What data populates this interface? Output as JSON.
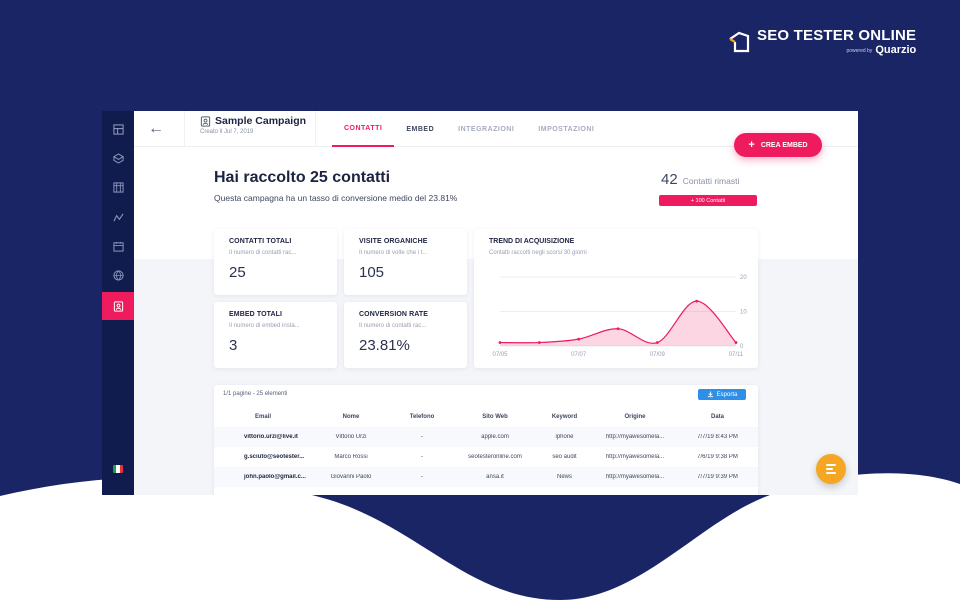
{
  "brand": {
    "name": "SEO TESTER ONLINE",
    "powered_by": "powered by",
    "partner": "Quarzio"
  },
  "campaign": {
    "name": "Sample Campaign",
    "created": "Creato il Jul 7, 2019"
  },
  "tabs": [
    {
      "label": "CONTATTI",
      "active": true
    },
    {
      "label": "EMBED",
      "active": false
    },
    {
      "label": "INTEGRAZIONI",
      "active": false
    },
    {
      "label": "IMPOSTAZIONI",
      "active": false
    }
  ],
  "create_button": "CREA EMBED",
  "hero": {
    "title": "Hai raccolto 25 contatti",
    "subtitle": "Questa campagna ha un tasso di conversione medio del 23.81%",
    "remaining_value": "42",
    "remaining_label": "Contatti rimasti",
    "buy_label": "+ 100 Contatti"
  },
  "stats": [
    {
      "title": "CONTATTI TOTALI",
      "desc": "Il numero di contatti rac...",
      "value": "25"
    },
    {
      "title": "VISITE ORGANICHE",
      "desc": "Il numero di volte che i t...",
      "value": "105"
    },
    {
      "title": "EMBED TOTALI",
      "desc": "Il numero di embed insta...",
      "value": "3"
    },
    {
      "title": "CONVERSION RATE",
      "desc": "Il numero di contatti rac...",
      "value": "23.81%"
    }
  ],
  "trend": {
    "title": "TREND DI ACQUISIZIONE",
    "subtitle": "Contatti raccolti negli scorsi 30 giorni"
  },
  "chart_data": {
    "type": "area",
    "x": [
      "07/05",
      "07/06",
      "07/07",
      "07/08",
      "07/09",
      "07/10",
      "07/11"
    ],
    "values": [
      1,
      1,
      2,
      5,
      1,
      13,
      1
    ],
    "x_tick_labels": [
      "07/05",
      "07/07",
      "07/09",
      "07/11"
    ],
    "ylim": [
      0,
      20
    ],
    "y_ticks": [
      "0",
      "10",
      "20"
    ],
    "color": "#ee1c5f",
    "grid": true
  },
  "table": {
    "pager": "1/1 pagine - 25 elementi",
    "export_label": "Esporta",
    "columns": [
      "Email",
      "Nome",
      "Telefono",
      "Sito Web",
      "Keyword",
      "Origine",
      "Data"
    ],
    "rows": [
      [
        "vittorio.urzi@live.it",
        "Vittorio Urzi",
        "-",
        "apple.com",
        "iphone",
        "http://myawesomela...",
        "7/7/19 8:43 PM"
      ],
      [
        "g.sciuto@seotester...",
        "Marco Rossi",
        "-",
        "seotesteronline.com",
        "seo audit",
        "http://myawesomela...",
        "7/6/19 9:38 PM"
      ],
      [
        "john.paolo@gmail.c...",
        "Giovanni Paolo",
        "-",
        "ansa.it",
        "News",
        "http://myawesomela...",
        "7/7/19 9:39 PM"
      ]
    ]
  },
  "colors": {
    "navy": "#1a2566",
    "accent": "#ee1c5f",
    "rail": "#0f1c4d",
    "chat": "#f5a623",
    "export": "#2d8fe8"
  },
  "icons": [
    "layout-icon",
    "box-icon",
    "grid-icon",
    "activity-icon",
    "calendar-icon",
    "globe-icon",
    "contacts-icon"
  ]
}
